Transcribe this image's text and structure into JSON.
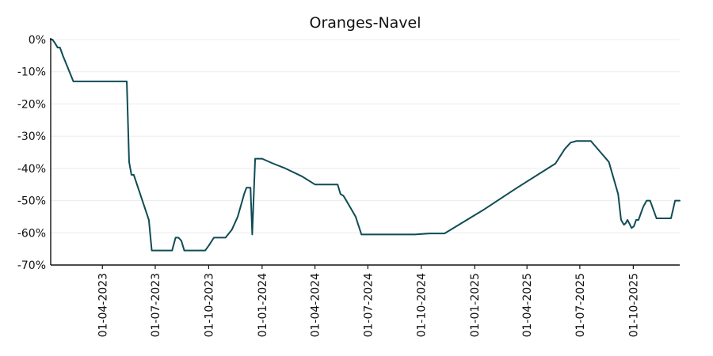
{
  "chart_data": {
    "type": "line",
    "title": "Oranges-Navel",
    "xlabel": "",
    "ylabel": "",
    "y_unit": "%",
    "ylim": [
      -70,
      0
    ],
    "yticks": [
      0,
      -10,
      -20,
      -30,
      -40,
      -50,
      -60,
      -70
    ],
    "ytick_labels": [
      "0%",
      "-10%",
      "-20%",
      "-30%",
      "-40%",
      "-50%",
      "-60%",
      "-70%"
    ],
    "xlim": [
      "2023-01-02",
      "2025-12-20"
    ],
    "xticks": [
      "2023-04-01",
      "2023-07-01",
      "2023-10-01",
      "2024-01-01",
      "2024-04-01",
      "2024-07-01",
      "2024-10-01",
      "2025-01-01",
      "2025-04-01",
      "2025-07-01",
      "2025-10-01"
    ],
    "xtick_labels": [
      "01-04-2023",
      "01-07-2023",
      "01-10-2023",
      "01-01-2024",
      "01-04-2024",
      "01-07-2024",
      "01-10-2024",
      "01-01-2025",
      "01-04-2025",
      "01-07-2025",
      "01-10-2025"
    ],
    "grid": "horizontal",
    "legend": "none",
    "colors": {
      "line": "#0f4c55",
      "grid": "#ececec",
      "axis": "#111111"
    },
    "series": [
      {
        "x": [
          "2023-01-02",
          "2023-01-05",
          "2023-01-09",
          "2023-01-14",
          "2023-01-18",
          "2023-01-23",
          "2023-02-10",
          "2023-03-15",
          "2023-04-20",
          "2023-05-10",
          "2023-05-13",
          "2023-05-17",
          "2023-05-21",
          "2023-05-25",
          "2023-06-20",
          "2023-06-25",
          "2023-07-05",
          "2023-07-15",
          "2023-07-30",
          "2023-08-05",
          "2023-08-10",
          "2023-08-15",
          "2023-08-20",
          "2023-08-25",
          "2023-09-05",
          "2023-09-15",
          "2023-09-25",
          "2023-10-01",
          "2023-10-10",
          "2023-10-20",
          "2023-10-30",
          "2023-11-10",
          "2023-11-20",
          "2023-12-01",
          "2023-12-05",
          "2023-12-08",
          "2023-12-12",
          "2023-12-15",
          "2023-12-20",
          "2024-01-01",
          "2024-01-20",
          "2024-02-10",
          "2024-03-10",
          "2024-04-01",
          "2024-04-15",
          "2024-05-01",
          "2024-05-10",
          "2024-05-15",
          "2024-05-20",
          "2024-05-25",
          "2024-06-10",
          "2024-06-20",
          "2024-07-15",
          "2024-08-15",
          "2024-09-10",
          "2024-09-20",
          "2024-10-15",
          "2024-11-10",
          "2025-01-15",
          "2025-03-15",
          "2025-05-20",
          "2025-06-05",
          "2025-06-15",
          "2025-06-25",
          "2025-07-20",
          "2025-08-20",
          "2025-09-05",
          "2025-09-10",
          "2025-09-15",
          "2025-09-18",
          "2025-09-21",
          "2025-09-24",
          "2025-09-28",
          "2025-10-02",
          "2025-10-06",
          "2025-10-10",
          "2025-10-14",
          "2025-10-18",
          "2025-10-24",
          "2025-10-30",
          "2025-11-10",
          "2025-11-25",
          "2025-12-05",
          "2025-12-12",
          "2025-12-18",
          "2025-12-20"
        ],
        "values": [
          0,
          0,
          -1,
          -2.5,
          -2.5,
          -5,
          -13,
          -13,
          -13,
          -13,
          -13,
          -38,
          -42,
          -42,
          -56,
          -65.5,
          -65.5,
          -65.5,
          -65.5,
          -61.5,
          -61.5,
          -62.5,
          -65.5,
          -65.5,
          -65.5,
          -65.5,
          -65.5,
          -64,
          -61.5,
          -61.5,
          -61.5,
          -59,
          -55,
          -48,
          -46,
          -46,
          -46,
          -60.5,
          -37,
          -37,
          -38.5,
          -40,
          -42.5,
          -45,
          -45,
          -45,
          -45,
          -48,
          -48.5,
          -50,
          -55,
          -60.5,
          -60.5,
          -60.5,
          -60.5,
          -60.5,
          -60.2,
          -60.2,
          -53,
          -46,
          -38.5,
          -34,
          -32,
          -31.5,
          -31.5,
          -38,
          -48,
          -56,
          -57.5,
          -57,
          -56,
          -57,
          -58.5,
          -58,
          -56,
          -56,
          -54,
          -52,
          -50,
          -50,
          -55.5,
          -55.5,
          -55.5,
          -50,
          -50,
          -50
        ]
      }
    ]
  }
}
